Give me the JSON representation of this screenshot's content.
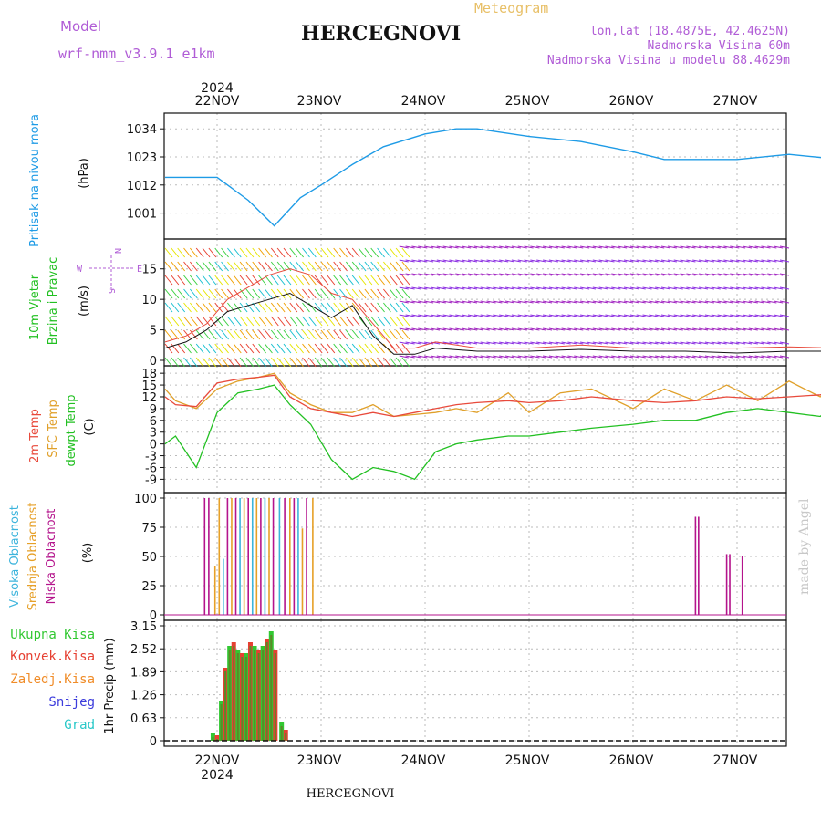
{
  "header": {
    "model_label": "Model",
    "model_name": "wrf-nmm_v3.9.1 e1km",
    "title": "HERCEGNOVI",
    "meteogram_label": "Meteogram",
    "lonlat": "lon,lat (18.4875E, 42.4625N)",
    "altitude": "Nadmorska Visina 60m",
    "model_altitude": "Nadmorska Visina u modelu 88.4629m",
    "bottom_title": "HERCEGNOVI",
    "credit": "made by Angel"
  },
  "colors": {
    "pressure": "#1e9be6",
    "temp2m": "#e84a3c",
    "sfc": "#e0a02a",
    "dew": "#22c022",
    "high_cloud": "#3cb4dc",
    "mid_cloud": "#e6a028",
    "low_cloud": "#b4148c",
    "precip_total": "#32c832",
    "precip_conv": "#e64032",
    "precip_frozen": "#f08c28",
    "snow": "#3c3cdc",
    "graupel": "#28c8c8",
    "label_purple": "#b05cd6",
    "label_gold": "#e8c068"
  },
  "chart_data": [
    {
      "type": "line",
      "panel": "pressure",
      "ylabel_color_text": "Pritisak na nivou mora",
      "ylabel_unit": "(hPa)",
      "yticks": [
        "1001",
        "1012",
        "1023",
        "1034"
      ],
      "ylim": [
        993,
        1038
      ],
      "x_days": [
        -0.5,
        0,
        0.3,
        0.55,
        0.8,
        1,
        1.3,
        1.6,
        2,
        2.3,
        2.5,
        3,
        3.5,
        4,
        4.3,
        4.6,
        5,
        5.5,
        6
      ],
      "series": [
        {
          "values": [
            1015,
            1015,
            1006,
            996,
            1007,
            1012,
            1020,
            1027,
            1032,
            1034,
            1034,
            1031,
            1029,
            1025,
            1022,
            1022,
            1022,
            1024,
            1022
          ]
        }
      ]
    },
    {
      "type": "line",
      "panel": "wind",
      "ylabel_color_text1": "10m Vjetar",
      "ylabel_color_text2": "Brzina i Pravac",
      "ylabel_unit": "(m/s)",
      "compass_n": "N",
      "compass_e": "E",
      "compass_w": "W",
      "compass_s": "S",
      "yticks": [
        "0",
        "5",
        "10",
        "15"
      ],
      "ylim": [
        0,
        19
      ],
      "x_days": [
        -0.5,
        -0.3,
        -0.1,
        0.1,
        0.3,
        0.5,
        0.7,
        0.9,
        1.1,
        1.3,
        1.5,
        1.7,
        1.9,
        2.1,
        2.5,
        3,
        3.5,
        4,
        4.5,
        5,
        5.5,
        6
      ],
      "series": [
        {
          "values": [
            2,
            3,
            5,
            8,
            9,
            10,
            11,
            9,
            7,
            9,
            4,
            1,
            1,
            2,
            1.5,
            1.5,
            1.8,
            1.5,
            1.5,
            1.2,
            1.5,
            1.5
          ]
        },
        {
          "values": [
            3,
            4,
            6,
            10,
            12,
            14,
            15,
            14,
            11,
            10,
            6,
            2,
            2,
            3,
            2,
            2,
            2.5,
            2,
            2,
            2,
            2.2,
            2
          ]
        }
      ]
    },
    {
      "type": "line",
      "panel": "temperature",
      "ylabel_t2m": "2m Temp",
      "ylabel_sfc": "SFC Temp",
      "ylabel_dew": "dewpt Temp",
      "ylabel_unit": "(C)",
      "yticks": [
        "-9",
        "-6",
        "-3",
        "0",
        "3",
        "6",
        "9",
        "12",
        "15",
        "18"
      ],
      "ylim": [
        -11,
        18.5
      ],
      "x_days": [
        -0.5,
        -0.4,
        -0.2,
        0,
        0.2,
        0.4,
        0.55,
        0.7,
        0.9,
        1.1,
        1.3,
        1.5,
        1.7,
        1.9,
        2.1,
        2.3,
        2.5,
        2.8,
        3,
        3.3,
        3.6,
        4,
        4.3,
        4.6,
        4.9,
        5.2,
        5.5,
        5.8,
        6
      ],
      "series": [
        {
          "name": "2m Temp",
          "values": [
            12,
            10,
            9.5,
            15.5,
            16.5,
            17,
            17.5,
            12,
            9,
            8,
            7,
            8,
            7,
            8,
            9,
            10,
            10.5,
            11,
            10.5,
            11,
            12,
            11,
            10.5,
            11,
            12,
            11.5,
            12,
            12.5,
            14
          ]
        },
        {
          "name": "SFC Temp",
          "values": [
            14,
            11,
            9,
            14,
            16,
            17,
            18,
            13,
            10,
            8,
            8,
            10,
            7,
            7.5,
            8,
            9,
            8,
            13,
            8,
            13,
            14,
            9,
            14,
            11,
            15,
            11,
            16,
            12,
            17
          ]
        },
        {
          "name": "dewpt Temp",
          "values": [
            0,
            2,
            -6,
            8,
            13,
            14,
            15,
            10,
            5,
            -4,
            -9,
            -6,
            -7,
            -9,
            -2,
            0,
            1,
            2,
            2,
            3,
            4,
            5,
            6,
            6,
            8,
            9,
            8,
            7,
            12
          ]
        }
      ]
    },
    {
      "type": "bar",
      "panel": "cloud",
      "ylabel_high": "Visoka Oblacnost",
      "ylabel_mid": "Srednja Oblacnost",
      "ylabel_low": "Niska Oblacnost",
      "ylabel_unit": "(%)",
      "yticks": [
        "0",
        "25",
        "50",
        "75",
        "100"
      ],
      "ylim": [
        0,
        100
      ],
      "bars_days": [
        -0.12,
        -0.08,
        -0.02,
        0.02,
        0.06,
        0.1,
        0.14,
        0.18,
        0.22,
        0.26,
        0.3,
        0.34,
        0.38,
        0.42,
        0.46,
        0.5,
        0.54,
        0.6,
        0.65,
        0.7,
        0.74,
        0.78,
        0.82,
        0.86,
        0.92
      ],
      "bars_values": [
        100,
        100,
        42,
        100,
        48,
        100,
        100,
        100,
        100,
        100,
        100,
        100,
        100,
        100,
        100,
        100,
        100,
        100,
        100,
        100,
        100,
        100,
        74,
        100,
        100
      ],
      "bars_series": [
        "low",
        "low",
        "mid",
        "mid",
        "high",
        "low",
        "mid",
        "low",
        "high",
        "mid",
        "low",
        "high",
        "mid",
        "low",
        "high",
        "mid",
        "low",
        "high",
        "low",
        "mid",
        "low",
        "high",
        "mid",
        "low",
        "mid"
      ],
      "late_bars_days": [
        4.6,
        4.63,
        4.9,
        4.93,
        5.05
      ],
      "late_bars_values": [
        84,
        84,
        52,
        52,
        50
      ]
    },
    {
      "type": "bar",
      "panel": "precip",
      "ylabel_total": "Ukupna Kisa",
      "ylabel_conv": "Konvek.Kisa",
      "ylabel_frozen": "Zaledj.Kisa",
      "ylabel_snow": "Snijeg",
      "ylabel_graupel": "Grad",
      "ylabel_unit": "1hr Precip (mm)",
      "yticks": [
        "0",
        "0.63",
        "1.26",
        "1.89",
        "2.52",
        "3.15"
      ],
      "ylim": [
        0,
        3.15
      ],
      "x_days": [
        -0.04,
        0.0,
        0.04,
        0.08,
        0.12,
        0.16,
        0.2,
        0.24,
        0.28,
        0.32,
        0.36,
        0.4,
        0.44,
        0.48,
        0.52,
        0.56,
        0.62,
        0.66
      ],
      "values": [
        0.2,
        0.15,
        1.1,
        2.0,
        2.6,
        2.7,
        2.5,
        2.4,
        2.4,
        2.7,
        2.6,
        2.5,
        2.6,
        2.8,
        3.0,
        2.5,
        0.5,
        0.3
      ]
    }
  ],
  "axis": {
    "days": [
      "22NOV",
      "23NOV",
      "24NOV",
      "25NOV",
      "26NOV",
      "27NOV"
    ],
    "year": "2024"
  }
}
